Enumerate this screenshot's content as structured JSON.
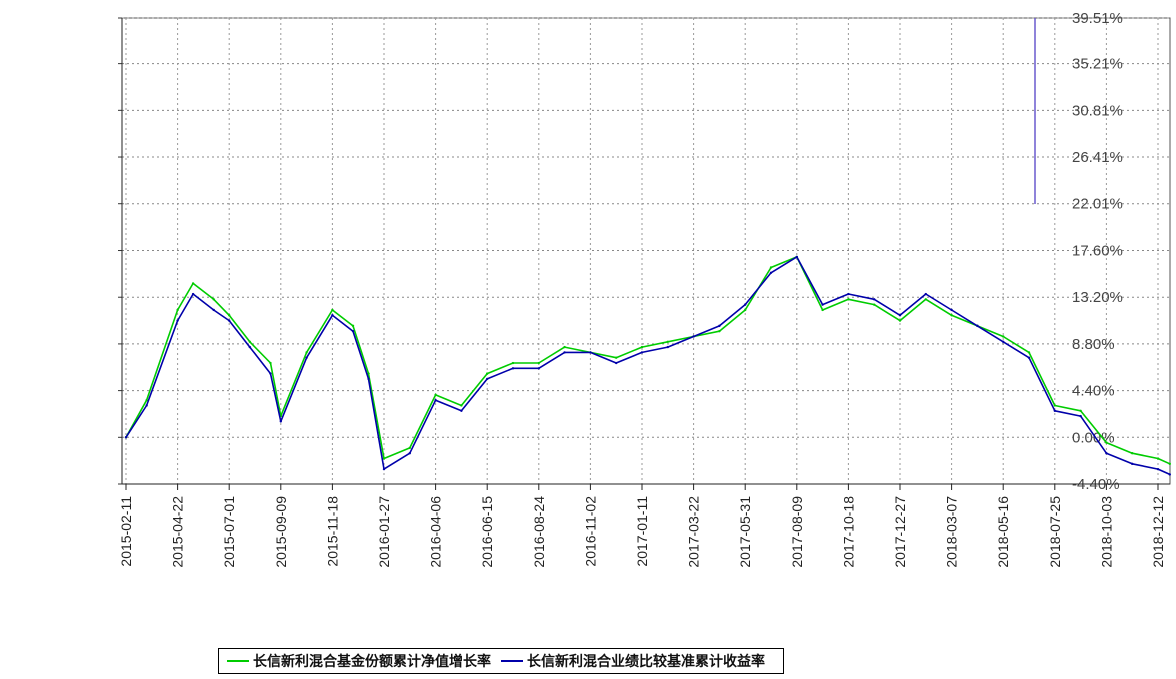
{
  "chart_data": {
    "type": "line",
    "title": "",
    "xlabel": "",
    "ylabel": "",
    "x_ticks": [
      "2015-02-11",
      "2015-04-22",
      "2015-07-01",
      "2015-09-09",
      "2015-11-18",
      "2016-01-27",
      "2016-04-06",
      "2016-06-15",
      "2016-08-24",
      "2016-11-02",
      "2017-01-11",
      "2017-03-22",
      "2017-05-31",
      "2017-08-09",
      "2017-10-18",
      "2017-12-27",
      "2018-03-07",
      "2018-05-16",
      "2018-07-25",
      "2018-10-03",
      "2018-12-12"
    ],
    "y_ticks": [
      "39.51%",
      "35.21%",
      "30.81%",
      "26.41%",
      "22.01%",
      "17.60%",
      "13.20%",
      "8.80%",
      "4.40%",
      "0.00%",
      "-4.40%"
    ],
    "ylim": [
      -4.4,
      39.51
    ],
    "grid": true,
    "legend_position": "bottom",
    "colors": {
      "fund": "#00cc00",
      "benchmark": "#0000aa",
      "overlay_red": "#ff0000",
      "overlay_yellow": "#dddd00"
    },
    "series": [
      {
        "name": "长信新利混合基金份额累计净值增长率",
        "x": [
          "2015-02-11",
          "2015-03-11",
          "2015-04-22",
          "2015-05-13",
          "2015-06-10",
          "2015-07-01",
          "2015-07-29",
          "2015-08-26",
          "2015-09-09",
          "2015-10-14",
          "2015-11-18",
          "2015-12-16",
          "2016-01-06",
          "2016-01-27",
          "2016-03-02",
          "2016-04-06",
          "2016-05-11",
          "2016-06-15",
          "2016-07-20",
          "2016-08-24",
          "2016-09-28",
          "2016-11-02",
          "2016-12-07",
          "2017-01-11",
          "2017-02-15",
          "2017-03-22",
          "2017-04-26",
          "2017-05-31",
          "2017-07-05",
          "2017-08-09",
          "2017-09-13",
          "2017-10-18",
          "2017-11-22",
          "2017-12-27",
          "2018-01-31",
          "2018-03-07",
          "2018-04-11",
          "2018-05-16",
          "2018-06-20",
          "2018-07-25",
          "2018-08-29",
          "2018-10-03",
          "2018-11-07",
          "2018-12-12",
          "2018-12-28"
        ],
        "values": [
          0.0,
          3.5,
          12.0,
          14.5,
          13.0,
          11.5,
          9.0,
          7.0,
          2.0,
          8.0,
          12.0,
          10.5,
          6.0,
          -2.0,
          -1.0,
          4.0,
          3.0,
          6.0,
          7.0,
          7.0,
          8.5,
          8.0,
          7.5,
          8.5,
          9.0,
          9.5,
          10.0,
          12.0,
          16.0,
          17.0,
          12.0,
          13.0,
          12.5,
          11.0,
          13.0,
          11.5,
          10.5,
          9.5,
          8.0,
          3.0,
          2.5,
          -0.5,
          -1.5,
          -2.0,
          -2.5
        ]
      },
      {
        "name": "长信新利混合业绩比较基准累计收益率",
        "x": [
          "2015-02-11",
          "2015-03-11",
          "2015-04-22",
          "2015-05-13",
          "2015-06-10",
          "2015-07-01",
          "2015-07-29",
          "2015-08-26",
          "2015-09-09",
          "2015-10-14",
          "2015-11-18",
          "2015-12-16",
          "2016-01-06",
          "2016-01-27",
          "2016-03-02",
          "2016-04-06",
          "2016-05-11",
          "2016-06-15",
          "2016-07-20",
          "2016-08-24",
          "2016-09-28",
          "2016-11-02",
          "2016-12-07",
          "2017-01-11",
          "2017-02-15",
          "2017-03-22",
          "2017-04-26",
          "2017-05-31",
          "2017-07-05",
          "2017-08-09",
          "2017-09-13",
          "2017-10-18",
          "2017-11-22",
          "2017-12-27",
          "2018-01-31",
          "2018-03-07",
          "2018-04-11",
          "2018-05-16",
          "2018-06-20",
          "2018-07-25",
          "2018-08-29",
          "2018-10-03",
          "2018-11-07",
          "2018-12-12",
          "2018-12-28"
        ],
        "values": [
          0.0,
          3.0,
          11.0,
          13.5,
          12.0,
          11.0,
          8.5,
          6.0,
          1.5,
          7.5,
          11.5,
          10.0,
          5.5,
          -3.0,
          -1.5,
          3.5,
          2.5,
          5.5,
          6.5,
          6.5,
          8.0,
          8.0,
          7.0,
          8.0,
          8.5,
          9.5,
          10.5,
          12.5,
          15.5,
          17.0,
          12.5,
          13.5,
          13.0,
          11.5,
          13.5,
          12.0,
          10.5,
          9.0,
          7.5,
          2.5,
          2.0,
          -1.5,
          -2.5,
          -3.0,
          -3.5
        ]
      }
    ]
  }
}
